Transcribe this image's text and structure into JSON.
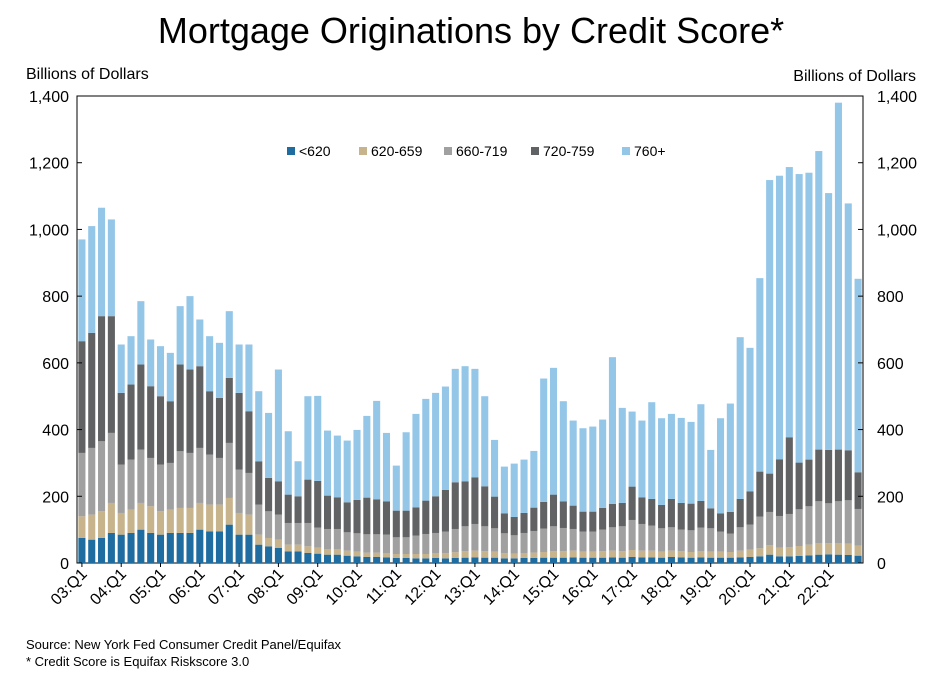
{
  "chart_data": {
    "type": "bar",
    "stacked": true,
    "title": "Mortgage Originations by Credit Score*",
    "ylabel_left": "Billions of Dollars",
    "ylabel_right": "Billions of Dollars",
    "ylim": [
      0,
      1400
    ],
    "yticks": [
      "0",
      "200",
      "400",
      "600",
      "800",
      "1,000",
      "1,200",
      "1,400"
    ],
    "ytick_values": [
      0,
      200,
      400,
      600,
      800,
      1000,
      1200,
      1400
    ],
    "xtick_labels": [
      "03:Q1",
      "04:Q1",
      "05:Q1",
      "06:Q1",
      "07:Q1",
      "08:Q1",
      "09:Q1",
      "10:Q1",
      "11:Q1",
      "12:Q1",
      "13:Q1",
      "14:Q1",
      "15:Q1",
      "16:Q1",
      "17:Q1",
      "18:Q1",
      "19:Q1",
      "20:Q1",
      "21:Q1",
      "22:Q1"
    ],
    "grid": false,
    "legend_position": "top-center",
    "series": [
      {
        "name": "<620",
        "color": "#1F6DA0",
        "values": [
          75,
          70,
          75,
          90,
          85,
          90,
          100,
          90,
          85,
          90,
          90,
          90,
          100,
          95,
          95,
          115,
          85,
          85,
          55,
          50,
          45,
          35,
          35,
          30,
          28,
          25,
          25,
          22,
          20,
          18,
          18,
          17,
          15,
          15,
          14,
          14,
          15,
          14,
          15,
          16,
          17,
          16,
          16,
          14,
          14,
          15,
          15,
          16,
          16,
          16,
          17,
          16,
          16,
          16,
          17,
          16,
          18,
          17,
          17,
          16,
          18,
          17,
          16,
          17,
          16,
          16,
          16,
          17,
          18,
          20,
          25,
          20,
          20,
          21,
          23,
          25,
          26,
          25,
          24,
          22
        ]
      },
      {
        "name": "620-659",
        "color": "#C8B48C",
        "values": [
          65,
          75,
          80,
          90,
          65,
          70,
          80,
          80,
          70,
          70,
          75,
          75,
          80,
          80,
          80,
          80,
          65,
          60,
          30,
          25,
          25,
          20,
          20,
          20,
          18,
          17,
          17,
          15,
          14,
          13,
          13,
          13,
          12,
          12,
          13,
          13,
          15,
          15,
          17,
          19,
          20,
          19,
          18,
          15,
          14,
          15,
          16,
          17,
          19,
          19,
          20,
          18,
          18,
          19,
          20,
          19,
          21,
          20,
          20,
          18,
          19,
          18,
          17,
          19,
          18,
          18,
          17,
          20,
          22,
          24,
          28,
          26,
          27,
          30,
          32,
          35,
          33,
          35,
          34,
          30
        ]
      },
      {
        "name": "660-719",
        "color": "#A0A0A0",
        "values": [
          190,
          200,
          210,
          210,
          145,
          150,
          160,
          145,
          140,
          140,
          170,
          165,
          165,
          150,
          140,
          165,
          130,
          125,
          90,
          80,
          75,
          65,
          65,
          70,
          60,
          60,
          60,
          55,
          55,
          55,
          55,
          55,
          50,
          50,
          55,
          60,
          60,
          65,
          70,
          75,
          80,
          75,
          70,
          60,
          55,
          60,
          65,
          70,
          75,
          70,
          65,
          60,
          60,
          65,
          70,
          75,
          90,
          80,
          75,
          70,
          70,
          65,
          65,
          70,
          70,
          60,
          55,
          70,
          75,
          95,
          100,
          95,
          100,
          110,
          115,
          125,
          120,
          125,
          130,
          110
        ]
      },
      {
        "name": "720-759",
        "color": "#616264",
        "values": [
          335,
          345,
          375,
          350,
          215,
          225,
          255,
          215,
          205,
          185,
          260,
          250,
          245,
          190,
          180,
          195,
          230,
          185,
          130,
          100,
          100,
          85,
          80,
          130,
          140,
          100,
          95,
          90,
          100,
          110,
          105,
          100,
          80,
          80,
          85,
          100,
          110,
          125,
          140,
          135,
          140,
          120,
          95,
          60,
          55,
          60,
          70,
          80,
          95,
          80,
          70,
          60,
          60,
          65,
          70,
          70,
          100,
          80,
          80,
          70,
          85,
          80,
          80,
          80,
          60,
          55,
          65,
          85,
          100,
          135,
          115,
          170,
          230,
          140,
          140,
          155,
          160,
          155,
          150,
          110
        ]
      },
      {
        "name": "760+",
        "color": "#94C6E8",
        "values": [
          305,
          320,
          325,
          290,
          145,
          145,
          190,
          140,
          150,
          145,
          175,
          220,
          140,
          165,
          165,
          200,
          145,
          200,
          210,
          195,
          335,
          190,
          105,
          250,
          255,
          195,
          185,
          185,
          210,
          245,
          295,
          205,
          135,
          235,
          280,
          305,
          310,
          310,
          340,
          345,
          325,
          270,
          170,
          140,
          160,
          160,
          170,
          370,
          380,
          300,
          255,
          250,
          255,
          265,
          440,
          285,
          225,
          230,
          290,
          260,
          255,
          255,
          245,
          290,
          175,
          285,
          325,
          485,
          430,
          580,
          880,
          850,
          810,
          865,
          860,
          895,
          770,
          1040,
          740,
          580
        ]
      }
    ]
  },
  "notes": {
    "source": "Source: New York Fed Consumer Credit Panel/Equifax",
    "credit_score": "* Credit Score is Equifax Riskscore 3.0"
  }
}
